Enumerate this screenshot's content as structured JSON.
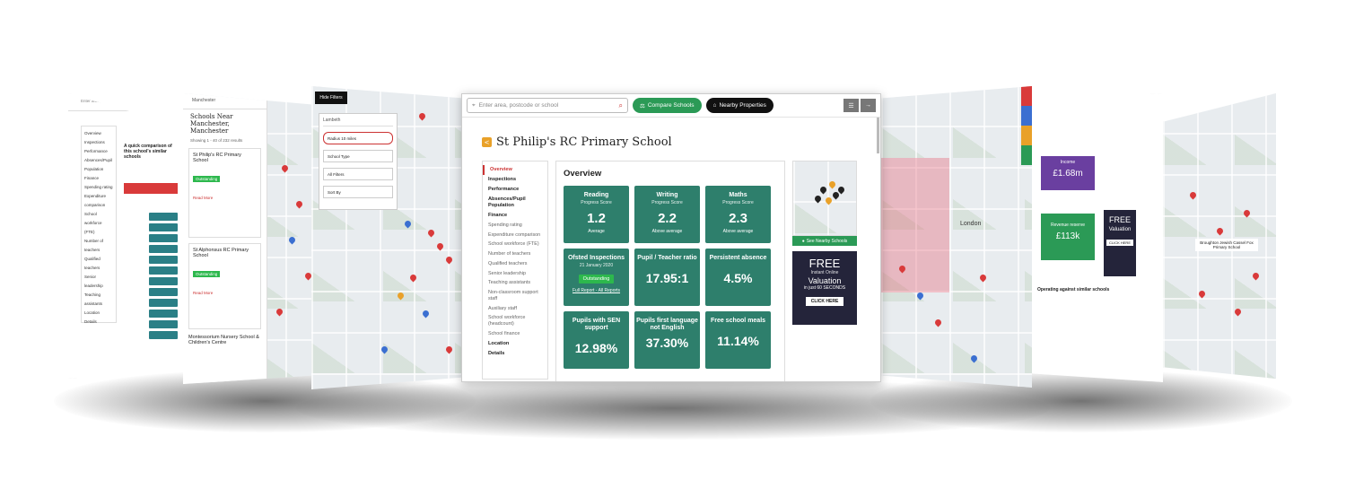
{
  "main": {
    "search_placeholder": "Enter area, postcode or school",
    "compare_label": "Compare Schools",
    "nearby_props_label": "Nearby Properties",
    "school_title": "St Philip's RC Primary School",
    "nav": [
      {
        "label": "Overview",
        "type": "active"
      },
      {
        "label": "Inspections",
        "type": "bold"
      },
      {
        "label": "Performance",
        "type": "bold"
      },
      {
        "label": "Absences/Pupil Population",
        "type": "bold"
      },
      {
        "label": "Finance",
        "type": "bold"
      },
      {
        "label": "Spending rating",
        "type": "sub"
      },
      {
        "label": "Expenditure comparison",
        "type": "sub"
      },
      {
        "label": "School workforce (FTE)",
        "type": "sub"
      },
      {
        "label": "Number of teachers",
        "type": "sub"
      },
      {
        "label": "Qualified teachers",
        "type": "sub"
      },
      {
        "label": "Senior leadership",
        "type": "sub"
      },
      {
        "label": "Teaching assistants",
        "type": "sub"
      },
      {
        "label": "Non-classroom support staff",
        "type": "sub"
      },
      {
        "label": "Auxiliary staff",
        "type": "sub"
      },
      {
        "label": "School workforce (headcount)",
        "type": "sub"
      },
      {
        "label": "School finance",
        "type": "sub"
      },
      {
        "label": "Location",
        "type": "bold"
      },
      {
        "label": "Details",
        "type": "bold"
      }
    ],
    "overview_heading": "Overview",
    "tiles": {
      "reading": {
        "title": "Reading",
        "sub": "Progress Score",
        "value": "1.2",
        "note": "Average"
      },
      "writing": {
        "title": "Writing",
        "sub": "Progress Score",
        "value": "2.2",
        "note": "Above average"
      },
      "maths": {
        "title": "Maths",
        "sub": "Progress Score",
        "value": "2.3",
        "note": "Above average"
      },
      "ofsted": {
        "title": "Ofsted Inspections",
        "date": "21 January 2020",
        "badge": "Outstanding",
        "link": "Full Report - All Reports"
      },
      "ratio": {
        "title": "Pupil / Teacher ratio",
        "value": "17.95:1"
      },
      "absence": {
        "title": "Persistent absence",
        "value": "4.5%"
      },
      "sen": {
        "title": "Pupils with SEN support",
        "value": "12.98%"
      },
      "lang": {
        "title": "Pupils first language not English",
        "value": "37.30%"
      },
      "meals": {
        "title": "Free school meals",
        "value": "11.14%"
      }
    },
    "see_nearby": "See Nearby Schools",
    "free": {
      "f1": "FREE",
      "f2": "Instant Online",
      "f3": "Valuation",
      "f4": "in just 60 SECONDS",
      "cta": "CLICK HERE"
    }
  },
  "left2": {
    "search": "Manchester",
    "heading": "Schools Near Manchester, Manchester",
    "count": "Showing 1 - 40 of 232 results",
    "school1": "St Philip's RC Primary School",
    "school2": "St Alphonsus RC Primary School",
    "school3": "Montessorium Nursery School & Children's Centre",
    "rating": "Outstanding",
    "read_more": "Read More",
    "compare": "Compare"
  },
  "left3": {
    "hide": "Hide Filters",
    "search": "Lambeth",
    "radius": "Radius 10 miles",
    "type": "School Type",
    "filters": "All Filters",
    "sort": "Sort By"
  },
  "left1": {
    "search": "Enter area, postcode or school",
    "heading": "A quick comparison of this school's similar schools"
  },
  "right2": {
    "income": "Income",
    "income_val": "£1.68m",
    "reserve": "Revenue reserve",
    "reserve_val": "£113k",
    "heading": "Operating against similar schools"
  },
  "right3": {
    "school": "Broughton Jewish Cassel Fox Primary School"
  },
  "right1": {
    "london": "London"
  }
}
